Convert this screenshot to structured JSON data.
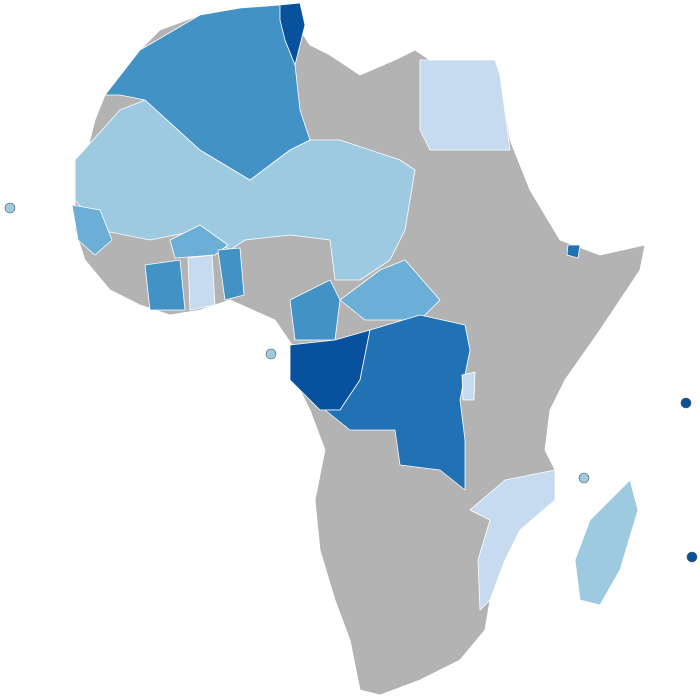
{
  "map": {
    "palette": [
      "#08519c",
      "#2171b5",
      "#4292c6",
      "#6baed6",
      "#9ecae1",
      "#c6dbef",
      "#b3b3b3"
    ]
  }
}
